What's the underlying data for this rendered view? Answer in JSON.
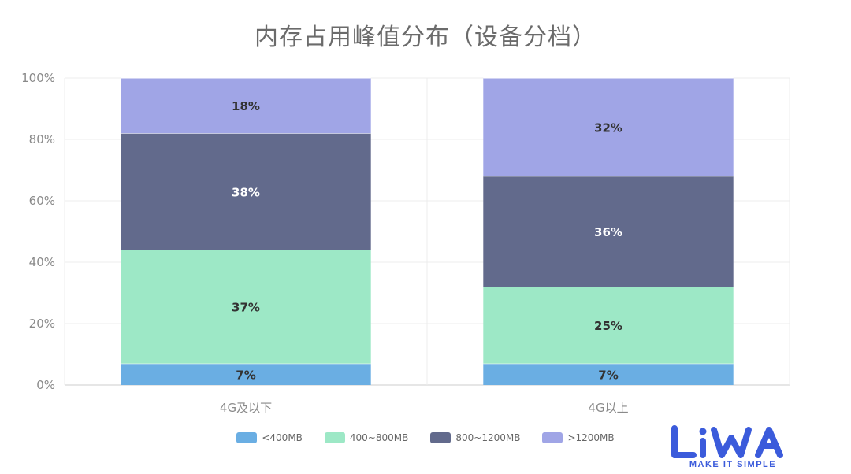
{
  "chart_data": {
    "type": "bar",
    "stacked": true,
    "title": "内存占用峰值分布（设备分档）",
    "categories": [
      "4G及以下",
      "4G以上"
    ],
    "series": [
      {
        "name": "<400MB",
        "color": "#6aaee3",
        "values": [
          7,
          7
        ],
        "labels": [
          "7%",
          "7%"
        ]
      },
      {
        "name": "400~800MB",
        "color": "#9de8c6",
        "values": [
          37,
          25
        ],
        "labels": [
          "37%",
          "25%"
        ]
      },
      {
        "name": "800~1200MB",
        "color": "#626a8c",
        "values": [
          38,
          36
        ],
        "labels": [
          "38%",
          "36%"
        ]
      },
      {
        "name": ">1200MB",
        "color": "#a0a5e6",
        "values": [
          18,
          32
        ],
        "labels": [
          "18%",
          "32%"
        ]
      }
    ],
    "y_ticks": [
      "0%",
      "20%",
      "40%",
      "60%",
      "80%",
      "100%"
    ],
    "ylim": [
      0,
      100
    ],
    "grid": true,
    "legend_position": "bottom-center"
  },
  "logo": {
    "color": "#3b5bdb",
    "tagline": "MAKE IT SIMPLE"
  }
}
